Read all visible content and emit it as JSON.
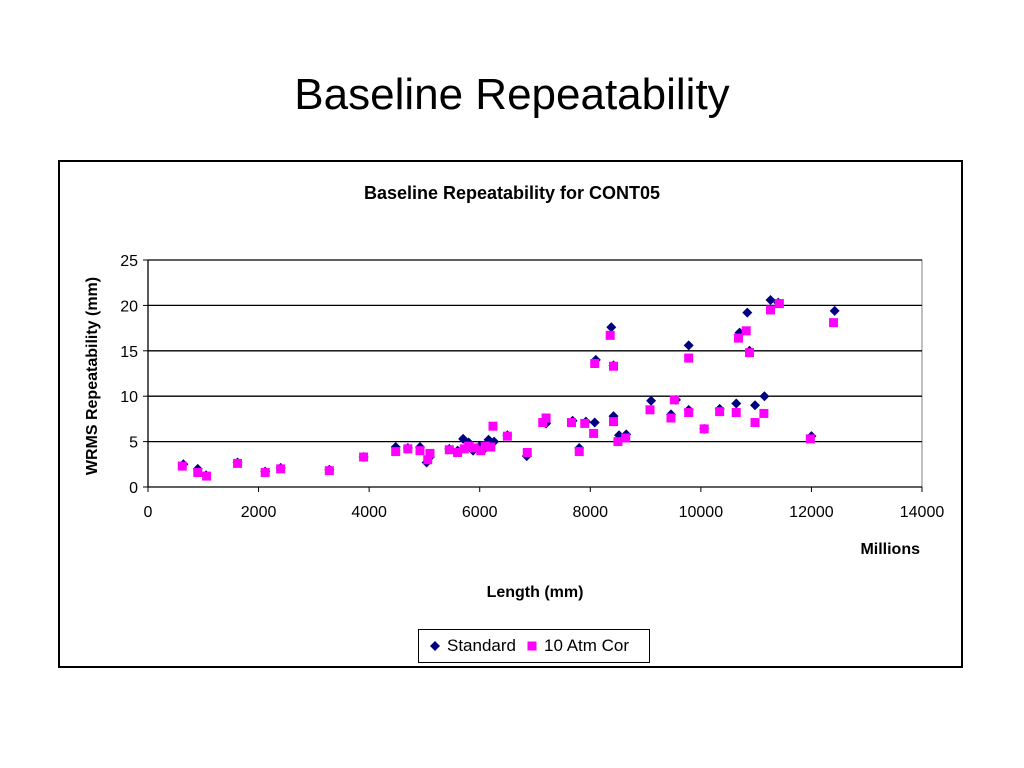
{
  "page": {
    "title": "Baseline Repeatability"
  },
  "chart_data": {
    "type": "scatter",
    "title": "Baseline Repeatability for CONT05",
    "xlabel": "Length (mm)",
    "x_unit_label": "Millions",
    "ylabel": "WRMS Repeatability (mm)",
    "xlim": [
      0,
      14000
    ],
    "ylim": [
      0,
      25
    ],
    "x_ticks": [
      0,
      2000,
      4000,
      6000,
      8000,
      10000,
      12000,
      14000
    ],
    "y_ticks": [
      0,
      5,
      10,
      15,
      20,
      25
    ],
    "grid": "horizontal",
    "legend_position": "bottom",
    "series": [
      {
        "name": "Standard",
        "marker": "diamond",
        "color": "#000080",
        "points": [
          [
            640,
            2.5
          ],
          [
            900,
            2.0
          ],
          [
            1050,
            1.3
          ],
          [
            1620,
            2.7
          ],
          [
            2120,
            1.7
          ],
          [
            2400,
            2.1
          ],
          [
            3280,
            1.9
          ],
          [
            3900,
            3.3
          ],
          [
            4480,
            4.4
          ],
          [
            4700,
            4.3
          ],
          [
            4920,
            4.4
          ],
          [
            5040,
            2.7
          ],
          [
            5100,
            3.3
          ],
          [
            5450,
            4.2
          ],
          [
            5600,
            4.0
          ],
          [
            5700,
            5.3
          ],
          [
            5800,
            4.9
          ],
          [
            5880,
            4.0
          ],
          [
            6000,
            4.5
          ],
          [
            6100,
            4.3
          ],
          [
            6160,
            5.2
          ],
          [
            6260,
            5.0
          ],
          [
            6500,
            5.7
          ],
          [
            6850,
            3.4
          ],
          [
            7200,
            7.0
          ],
          [
            7680,
            7.3
          ],
          [
            7800,
            4.3
          ],
          [
            7920,
            7.2
          ],
          [
            8080,
            7.1
          ],
          [
            8100,
            14.0
          ],
          [
            8380,
            17.6
          ],
          [
            8420,
            13.4
          ],
          [
            8420,
            7.8
          ],
          [
            8520,
            5.7
          ],
          [
            8650,
            5.8
          ],
          [
            9100,
            9.5
          ],
          [
            9460,
            8.0
          ],
          [
            9550,
            9.6
          ],
          [
            9780,
            15.6
          ],
          [
            9780,
            8.5
          ],
          [
            10060,
            6.4
          ],
          [
            10340,
            8.6
          ],
          [
            10640,
            9.2
          ],
          [
            10700,
            17.0
          ],
          [
            10840,
            19.2
          ],
          [
            10880,
            15.0
          ],
          [
            10980,
            9.0
          ],
          [
            11150,
            10.0
          ],
          [
            11260,
            20.6
          ],
          [
            11400,
            20.3
          ],
          [
            12000,
            5.6
          ],
          [
            12420,
            19.4
          ]
        ]
      },
      {
        "name": "10 Atm Cor",
        "marker": "square",
        "color": "#ff00ff",
        "points": [
          [
            620,
            2.3
          ],
          [
            900,
            1.6
          ],
          [
            1060,
            1.2
          ],
          [
            1620,
            2.6
          ],
          [
            2120,
            1.6
          ],
          [
            2400,
            2.0
          ],
          [
            3280,
            1.8
          ],
          [
            3900,
            3.3
          ],
          [
            4480,
            3.9
          ],
          [
            4700,
            4.2
          ],
          [
            4920,
            4.0
          ],
          [
            5060,
            3.0
          ],
          [
            5100,
            3.7
          ],
          [
            5450,
            4.1
          ],
          [
            5600,
            3.8
          ],
          [
            5720,
            4.2
          ],
          [
            5800,
            4.5
          ],
          [
            5900,
            4.3
          ],
          [
            6020,
            4.0
          ],
          [
            6100,
            4.5
          ],
          [
            6200,
            4.4
          ],
          [
            6240,
            6.7
          ],
          [
            6500,
            5.6
          ],
          [
            6860,
            3.8
          ],
          [
            7140,
            7.1
          ],
          [
            7200,
            7.6
          ],
          [
            7660,
            7.1
          ],
          [
            7800,
            3.9
          ],
          [
            7900,
            7.0
          ],
          [
            8060,
            5.9
          ],
          [
            8080,
            13.6
          ],
          [
            8360,
            16.7
          ],
          [
            8420,
            13.3
          ],
          [
            8420,
            7.2
          ],
          [
            8500,
            5.0
          ],
          [
            8640,
            5.4
          ],
          [
            9080,
            8.5
          ],
          [
            9460,
            7.6
          ],
          [
            9520,
            9.6
          ],
          [
            9780,
            14.2
          ],
          [
            9780,
            8.2
          ],
          [
            10060,
            6.4
          ],
          [
            10340,
            8.3
          ],
          [
            10640,
            8.2
          ],
          [
            10680,
            16.4
          ],
          [
            10820,
            17.2
          ],
          [
            10880,
            14.8
          ],
          [
            10980,
            7.1
          ],
          [
            11140,
            8.1
          ],
          [
            11260,
            19.5
          ],
          [
            11420,
            20.2
          ],
          [
            11980,
            5.3
          ],
          [
            12400,
            18.1
          ]
        ]
      }
    ]
  }
}
